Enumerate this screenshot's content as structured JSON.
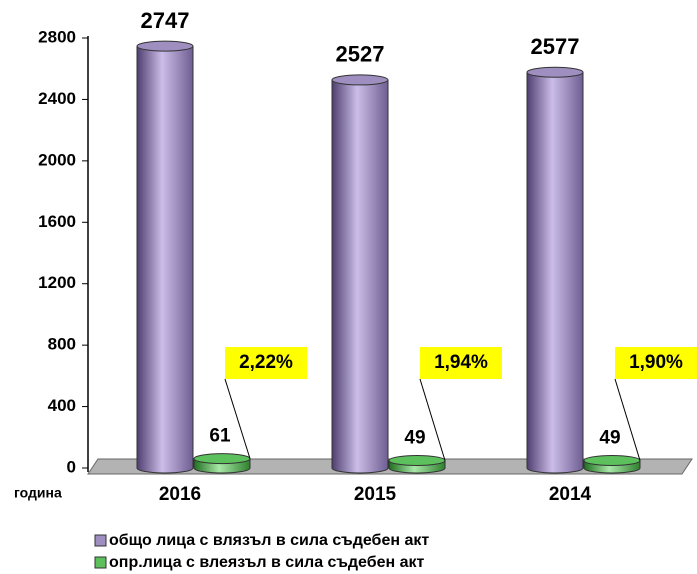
{
  "chart_data": {
    "type": "bar3d",
    "categories": [
      "2016",
      "2015",
      "2014"
    ],
    "series": [
      {
        "name": "общо лица с влязъл в сила съдебен акт",
        "color": "#9e8fc0",
        "values": [
          2747,
          2527,
          2577
        ]
      },
      {
        "name": "опр.лица с влеязъл в сила съдебен акт",
        "color": "#5cc05c",
        "values": [
          61,
          49,
          49
        ]
      }
    ],
    "annotations": [
      "2,22%",
      "1,94%",
      "1,90%"
    ],
    "x_label": "година",
    "ylim": [
      0,
      2800
    ],
    "yticks": [
      0,
      400,
      800,
      1200,
      1600,
      2000,
      2400,
      2800
    ]
  }
}
